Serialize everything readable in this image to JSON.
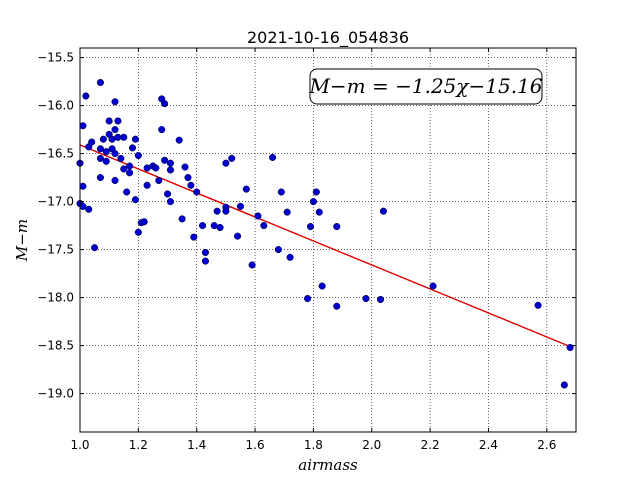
{
  "chart_data": {
    "type": "scatter",
    "title": "2021-10-16_054836",
    "xlabel": "airmass",
    "ylabel": "M−m",
    "xlim": [
      1.0,
      2.7
    ],
    "ylim": [
      -19.4,
      -15.4
    ],
    "y_inverted": true,
    "grid": true,
    "x_ticks": [
      1.0,
      1.2,
      1.4,
      1.6,
      1.8,
      2.0,
      2.2,
      2.4,
      2.6
    ],
    "x_tick_labels": [
      "1.0",
      "1.2",
      "1.4",
      "1.6",
      "1.8",
      "2.0",
      "2.2",
      "2.4",
      "2.6"
    ],
    "y_ticks": [
      -15.5,
      -16.0,
      -16.5,
      -17.0,
      -17.5,
      -18.0,
      -18.5,
      -19.0
    ],
    "y_tick_labels": [
      "−15.5",
      "−16.0",
      "−16.5",
      "−17.0",
      "−17.5",
      "−18.0",
      "−18.5",
      "−19.0"
    ],
    "annotation": "M−m = −1.25χ−15.16",
    "colors": {
      "points": "#0000cc",
      "fit_line": "#dd0000"
    },
    "fit": {
      "slope": -1.25,
      "intercept": -15.16,
      "x_range": [
        1.0,
        2.69
      ]
    },
    "points": [
      [
        1.0,
        -16.6
      ],
      [
        1.0,
        -17.02
      ],
      [
        1.01,
        -17.05
      ],
      [
        1.01,
        -16.21
      ],
      [
        1.01,
        -16.84
      ],
      [
        1.02,
        -15.9
      ],
      [
        1.03,
        -16.43
      ],
      [
        1.03,
        -17.08
      ],
      [
        1.04,
        -16.38
      ],
      [
        1.05,
        -17.48
      ],
      [
        1.07,
        -15.76
      ],
      [
        1.07,
        -16.45
      ],
      [
        1.07,
        -16.75
      ],
      [
        1.07,
        -16.55
      ],
      [
        1.08,
        -16.35
      ],
      [
        1.09,
        -16.48
      ],
      [
        1.09,
        -16.58
      ],
      [
        1.1,
        -16.16
      ],
      [
        1.1,
        -16.3
      ],
      [
        1.11,
        -16.35
      ],
      [
        1.11,
        -16.45
      ],
      [
        1.12,
        -16.25
      ],
      [
        1.12,
        -15.96
      ],
      [
        1.12,
        -16.5
      ],
      [
        1.12,
        -16.78
      ],
      [
        1.13,
        -16.33
      ],
      [
        1.13,
        -16.16
      ],
      [
        1.14,
        -16.55
      ],
      [
        1.15,
        -16.33
      ],
      [
        1.15,
        -16.66
      ],
      [
        1.16,
        -16.9
      ],
      [
        1.17,
        -16.7
      ],
      [
        1.17,
        -16.63
      ],
      [
        1.18,
        -16.44
      ],
      [
        1.19,
        -16.35
      ],
      [
        1.19,
        -16.98
      ],
      [
        1.2,
        -16.52
      ],
      [
        1.2,
        -17.32
      ],
      [
        1.21,
        -17.22
      ],
      [
        1.22,
        -17.21
      ],
      [
        1.23,
        -16.83
      ],
      [
        1.23,
        -16.65
      ],
      [
        1.25,
        -16.63
      ],
      [
        1.26,
        -16.65
      ],
      [
        1.27,
        -16.78
      ],
      [
        1.28,
        -16.25
      ],
      [
        1.28,
        -15.93
      ],
      [
        1.29,
        -15.98
      ],
      [
        1.29,
        -16.57
      ],
      [
        1.3,
        -16.92
      ],
      [
        1.31,
        -16.67
      ],
      [
        1.31,
        -16.6
      ],
      [
        1.31,
        -17.0
      ],
      [
        1.34,
        -16.36
      ],
      [
        1.35,
        -17.18
      ],
      [
        1.36,
        -16.64
      ],
      [
        1.37,
        -16.75
      ],
      [
        1.38,
        -16.83
      ],
      [
        1.39,
        -17.37
      ],
      [
        1.4,
        -16.9
      ],
      [
        1.42,
        -17.25
      ],
      [
        1.43,
        -17.53
      ],
      [
        1.43,
        -17.62
      ],
      [
        1.46,
        -17.25
      ],
      [
        1.47,
        -17.1
      ],
      [
        1.48,
        -17.27
      ],
      [
        1.5,
        -17.06
      ],
      [
        1.5,
        -17.1
      ],
      [
        1.5,
        -16.6
      ],
      [
        1.52,
        -16.55
      ],
      [
        1.54,
        -17.36
      ],
      [
        1.55,
        -17.05
      ],
      [
        1.57,
        -16.87
      ],
      [
        1.59,
        -17.66
      ],
      [
        1.61,
        -17.15
      ],
      [
        1.63,
        -17.25
      ],
      [
        1.66,
        -16.54
      ],
      [
        1.68,
        -17.5
      ],
      [
        1.69,
        -16.9
      ],
      [
        1.71,
        -17.11
      ],
      [
        1.72,
        -17.58
      ],
      [
        1.78,
        -18.01
      ],
      [
        1.79,
        -17.26
      ],
      [
        1.8,
        -17.0
      ],
      [
        1.81,
        -16.9
      ],
      [
        1.82,
        -17.11
      ],
      [
        1.83,
        -17.88
      ],
      [
        1.88,
        -17.26
      ],
      [
        1.88,
        -18.09
      ],
      [
        1.98,
        -18.01
      ],
      [
        2.03,
        -18.02
      ],
      [
        2.04,
        -17.1
      ],
      [
        2.21,
        -17.88
      ],
      [
        2.57,
        -18.08
      ],
      [
        2.66,
        -18.91
      ],
      [
        2.68,
        -18.52
      ]
    ]
  }
}
